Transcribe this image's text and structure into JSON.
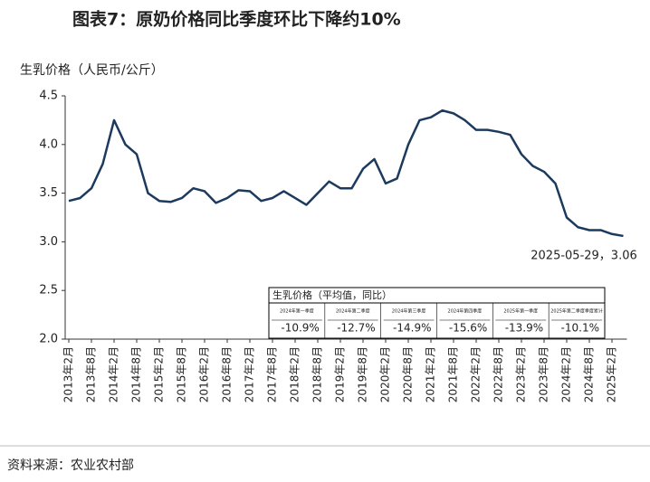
{
  "chart_data": {
    "type": "line",
    "title": "图表7：原奶价格同比季度环比下降约10%",
    "y_label": "生乳价格（人民币/公斤）",
    "source": "资料来源：农业农村部",
    "annotation": "2025-05-29，3.06",
    "color": "#1c3a5e",
    "categories": [
      "2013年2月",
      null,
      "2013年8月",
      null,
      "2014年2月",
      null,
      "2014年8月",
      null,
      "2015年2月",
      null,
      "2015年8月",
      null,
      "2016年2月",
      null,
      "2016年8月",
      null,
      "2017年2月",
      null,
      "2017年8月",
      null,
      "2018年2月",
      null,
      "2018年8月",
      null,
      "2019年2月",
      null,
      "2019年8月",
      null,
      "2020年2月",
      null,
      "2020年8月",
      null,
      "2021年2月",
      null,
      "2021年8月",
      null,
      "2022年2月",
      null,
      "2022年8月",
      null,
      "2023年2月",
      null,
      "2023年8月",
      null,
      "2024年2月",
      null,
      "2024年8月",
      null,
      "2025年2月",
      null
    ],
    "values": [
      3.42,
      3.45,
      3.55,
      3.8,
      4.25,
      4.0,
      3.9,
      3.5,
      3.42,
      3.41,
      3.45,
      3.55,
      3.52,
      3.4,
      3.45,
      3.53,
      3.52,
      3.42,
      3.45,
      3.52,
      3.45,
      3.38,
      3.5,
      3.62,
      3.55,
      3.55,
      3.75,
      3.85,
      3.6,
      3.65,
      4.0,
      4.25,
      4.28,
      4.35,
      4.32,
      4.25,
      4.15,
      4.15,
      4.13,
      4.1,
      3.9,
      3.78,
      3.72,
      3.6,
      3.25,
      3.15,
      3.12,
      3.12,
      3.08,
      3.06
    ],
    "ylim": [
      2.0,
      4.5
    ],
    "yticks": [
      {
        "value": 2,
        "label": "2.0"
      },
      2.5,
      {
        "value": 3,
        "label": "3.0"
      },
      3.5,
      {
        "value": 4,
        "label": "4.0"
      },
      4.5
    ],
    "grid": false,
    "table": {
      "title": "生乳价格（平均值，同比）",
      "header": [
        "2024年第一季度",
        "2024年第二季度",
        "2024年第三季度",
        "2024年第四季度",
        "2025年第一季度",
        "2025年第二季度季度累计"
      ],
      "cells": [
        "-10.9%",
        "-12.7%",
        "-14.9%",
        "-15.6%",
        "-13.9%",
        "-10.1%"
      ]
    }
  }
}
